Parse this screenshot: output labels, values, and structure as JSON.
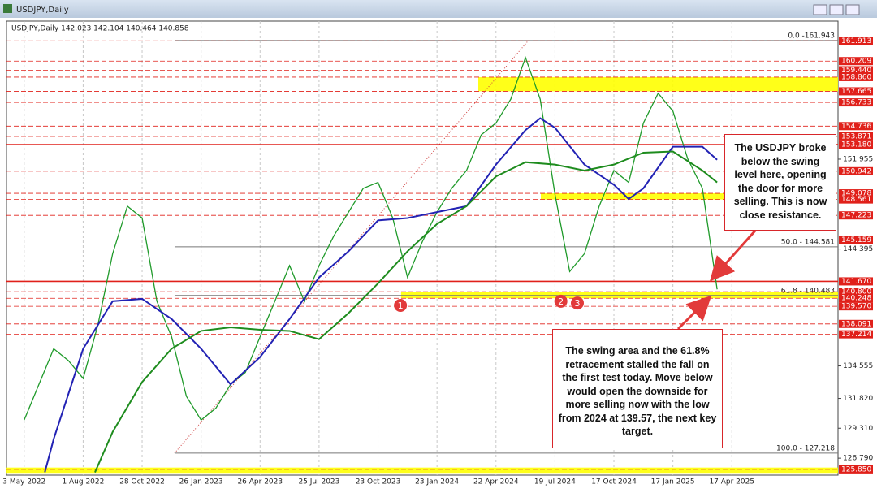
{
  "chart_data": {
    "type": "line",
    "window_title": "USDJPY,Daily",
    "info": "USDJPY,Daily  142.023 142.104 140.464 140.858",
    "xlim": [
      -0.3,
      13.8
    ],
    "xticks": [
      {
        "value": 0,
        "label": "3 May 2022"
      },
      {
        "value": 1,
        "label": "1 Aug 2022"
      },
      {
        "value": 2,
        "label": "28 Oct 2022"
      },
      {
        "value": 3,
        "label": "26 Jan 2023"
      },
      {
        "value": 4,
        "label": "26 Apr 2023"
      },
      {
        "value": 5,
        "label": "25 Jul 2023"
      },
      {
        "value": 6,
        "label": "23 Oct 2023"
      },
      {
        "value": 7,
        "label": "23 Jan 2024"
      },
      {
        "value": 8,
        "label": "22 Apr 2024"
      },
      {
        "value": 9,
        "label": "19 Jul 2024"
      },
      {
        "value": 10,
        "label": "17 Oct 2024"
      },
      {
        "value": 11,
        "label": "17 Jan 2025"
      },
      {
        "value": 12,
        "label": "17 Apr 2025"
      }
    ],
    "ylim": [
      125.5,
      163.3
    ],
    "yticks": [
      151.955,
      144.395,
      134.555,
      {
        "value": 131.82,
        "label": "131.820"
      },
      {
        "value": 129.31,
        "label": "129.310"
      },
      {
        "value": 126.79,
        "label": "126.790"
      }
    ],
    "levels": [
      161.913,
      160.209,
      {
        "value": 159.44,
        "label": "159.440"
      },
      {
        "value": 158.86,
        "label": "158.860"
      },
      157.665,
      156.733,
      154.736,
      153.871,
      150.942,
      149.078,
      148.561,
      147.223,
      145.159,
      {
        "value": 140.8,
        "label": "140.800"
      },
      140.248,
      {
        "value": 139.57,
        "label": "139.570"
      },
      138.091,
      137.214,
      {
        "value": 125.85,
        "label": "125.850"
      }
    ],
    "major_levels": [
      {
        "value": 153.18,
        "label": "153.180"
      },
      {
        "value": 141.67,
        "label": "141.670"
      }
    ],
    "level_color": "#e0201a",
    "zones": [
      {
        "low": 157.665,
        "high": 158.86,
        "start": 7.7,
        "end": 13.8
      },
      {
        "low": 148.561,
        "high": 149.078,
        "start": 8.76,
        "end": 11.86
      },
      {
        "low": 140.248,
        "high": 140.8,
        "start": 6.39,
        "end": 13.8
      },
      {
        "low": 125.55,
        "high": 126.0,
        "start": -0.3,
        "end": 13.8
      }
    ],
    "zone_color": "#ffff00",
    "fib": {
      "from_x": 2.55,
      "to_x": 8.55,
      "levels": [
        {
          "value": 161.943,
          "label": "0.0 -161.943"
        },
        {
          "value": 144.581,
          "label": "50.0 - 144.581"
        },
        {
          "value": 140.483,
          "label": "61.8 - 140.483"
        },
        {
          "value": 127.218,
          "label": "100.0 - 127.218"
        }
      ]
    },
    "series": [
      {
        "color": "#1f9a2a",
        "x": [
          0,
          0.25,
          0.5,
          0.75,
          1,
          1.25,
          1.5,
          1.75,
          2,
          2.25,
          2.5,
          2.75,
          3,
          3.25,
          3.5,
          3.75,
          4,
          4.25,
          4.5,
          4.75,
          5,
          5.25,
          5.5,
          5.75,
          6,
          6.25,
          6.5,
          6.75,
          7,
          7.25,
          7.5,
          7.75,
          8,
          8.25,
          8.5,
          8.75,
          9,
          9.25,
          9.5,
          9.75,
          10,
          10.25,
          10.5,
          10.75,
          11,
          11.25,
          11.5,
          11.75
        ],
        "values": [
          130,
          133,
          136,
          135,
          133.5,
          138,
          144,
          148,
          147,
          140,
          137,
          132,
          130,
          131,
          133,
          134,
          137,
          140,
          143,
          140,
          143,
          145.5,
          147.5,
          149.5,
          150,
          147,
          142,
          145,
          147.5,
          149.5,
          151,
          154,
          155,
          157,
          160.5,
          157,
          149,
          142.5,
          144,
          148,
          151,
          150,
          155,
          157.5,
          156,
          152,
          149.5,
          141
        ]
      },
      {
        "color": "#2222b4",
        "x": [
          0.35,
          0.5,
          1,
          1.5,
          2,
          2.5,
          3,
          3.5,
          4,
          4.5,
          5,
          5.5,
          6,
          6.5,
          7,
          7.5,
          8,
          8.5,
          8.75,
          9,
          9.5,
          10,
          10.25,
          10.5,
          11,
          11.5,
          11.75
        ],
        "values": [
          125.6,
          128.4,
          136,
          140,
          140.2,
          138.5,
          136,
          133,
          135.3,
          138.5,
          142,
          144.2,
          146.8,
          147,
          147.5,
          148,
          151.5,
          154.4,
          155.4,
          154.6,
          151.5,
          149.8,
          148.6,
          149.5,
          153,
          153,
          151.9
        ]
      },
      {
        "color": "#1e8c1e",
        "x": [
          1.2,
          1.5,
          2,
          2.5,
          3,
          3.5,
          4,
          4.5,
          5,
          5.5,
          6,
          6.5,
          7,
          7.5,
          8,
          8.5,
          9,
          9.5,
          10,
          10.5,
          11,
          11.5,
          11.75
        ],
        "values": [
          125.6,
          129,
          133.2,
          136,
          137.5,
          137.8,
          137.6,
          137.5,
          136.8,
          139,
          141.5,
          144.2,
          146.5,
          148,
          150.5,
          151.7,
          151.5,
          151,
          151.5,
          152.5,
          152.6,
          151,
          150
        ]
      }
    ],
    "markers": [
      {
        "label": "1",
        "x": 6.38,
        "y": 139.65
      },
      {
        "label": "2",
        "x": 9.1,
        "y": 140.0
      },
      {
        "label": "3",
        "x": 9.38,
        "y": 139.85
      }
    ],
    "annotations": [
      "The USDJPY broke below the swing level here, opening the door for more selling.  This is now close resistance.",
      "The swing area and the 61.8% retracement stalled the fall on the first test today. Move below would open the downside for more selling now with the low from 2024 at 139.57, the next key target."
    ]
  }
}
